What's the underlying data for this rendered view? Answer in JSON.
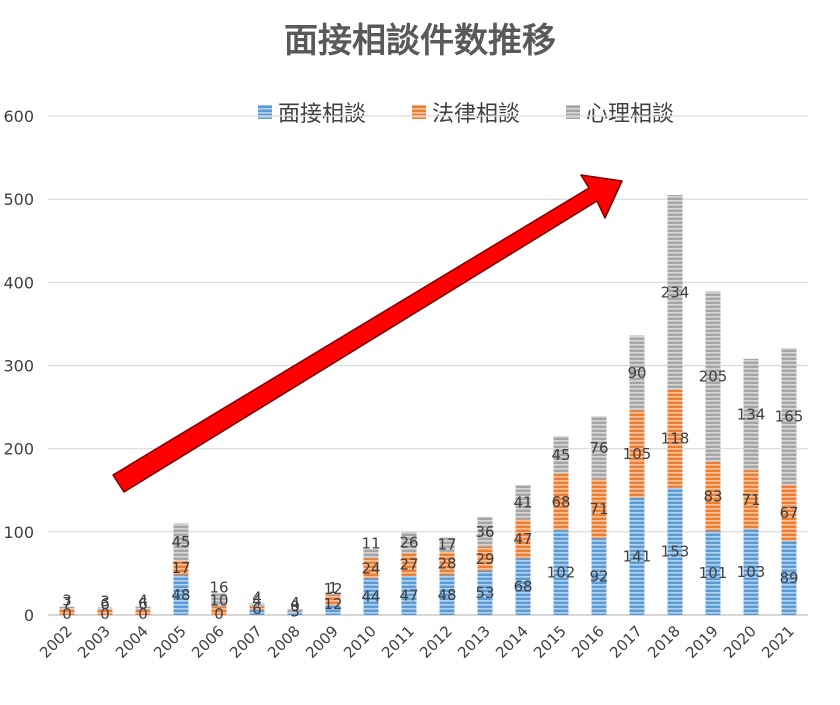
{
  "chart_data": {
    "type": "bar",
    "stacked": true,
    "title": "面接相談件数推移",
    "categories": [
      "2002",
      "2003",
      "2004",
      "2005",
      "2006",
      "2007",
      "2008",
      "2009",
      "2010",
      "2011",
      "2012",
      "2013",
      "2014",
      "2015",
      "2016",
      "2017",
      "2018",
      "2019",
      "2020",
      "2021"
    ],
    "series": [
      {
        "name": "面接相談",
        "color": "#5B9BD5",
        "values": [
          0,
          0,
          0,
          48,
          0,
          6,
          3,
          12,
          44,
          47,
          48,
          53,
          68,
          102,
          92,
          141,
          153,
          101,
          103,
          89
        ]
      },
      {
        "name": "法律相談",
        "color": "#ED7D31",
        "values": [
          7,
          6,
          6,
          17,
          10,
          4,
          0,
          12,
          24,
          27,
          28,
          29,
          47,
          68,
          71,
          105,
          118,
          83,
          71,
          67
        ]
      },
      {
        "name": "心理相談",
        "color": "#A5A5A5",
        "values": [
          3,
          3,
          4,
          45,
          16,
          4,
          4,
          1,
          11,
          26,
          17,
          36,
          41,
          45,
          76,
          90,
          234,
          205,
          134,
          165
        ]
      }
    ],
    "ylim": [
      0,
      600
    ],
    "yticks": [
      0,
      100,
      200,
      300,
      400,
      500,
      600
    ],
    "legend_position": "top",
    "grid": true,
    "annotation": "red upward arrow indicating increasing trend"
  }
}
